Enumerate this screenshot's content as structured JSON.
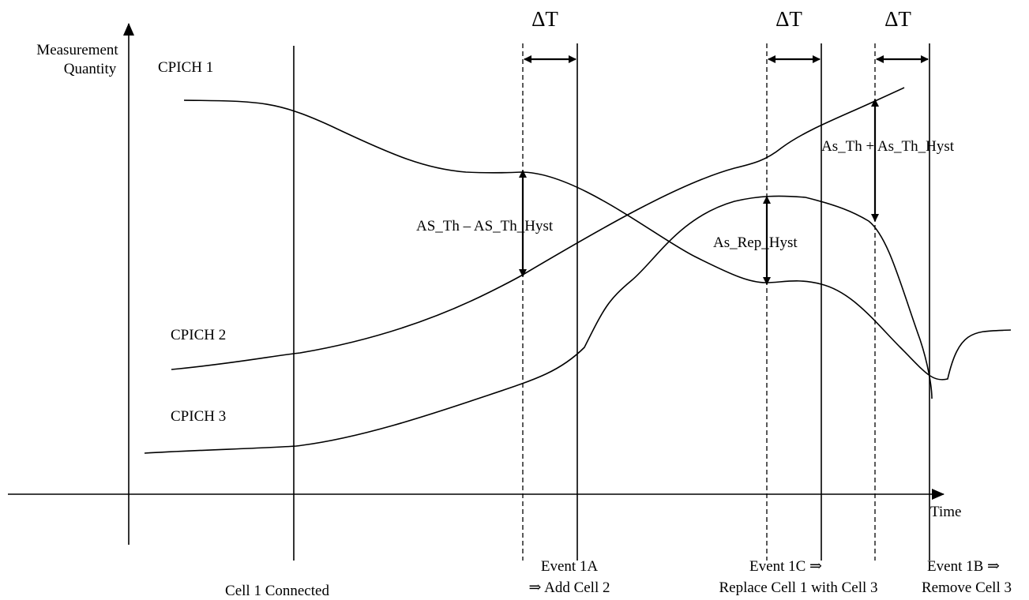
{
  "axes": {
    "y_label_line1": "Measurement",
    "y_label_line2": "Quantity",
    "x_label": "Time"
  },
  "curves": {
    "cpich1": "CPICH 1",
    "cpich2": "CPICH 2",
    "cpich3": "CPICH 3"
  },
  "delta_t": [
    "ΔT",
    "ΔT",
    "ΔT"
  ],
  "hysteresis": {
    "event_1a": "AS_Th – AS_Th_Hyst",
    "event_1c": "As_Rep_Hyst",
    "event_1b": "As_Th + As_Th_Hyst"
  },
  "events": {
    "cell1": "Cell 1 Connected",
    "event_1a_line1": "Event 1A",
    "event_1a_line2": "⇒ Add Cell 2",
    "event_1c_line1": "Event 1C ⇒",
    "event_1c_line2": "Replace Cell 1 with Cell 3",
    "event_1b_line1": "Event 1B ⇒",
    "event_1b_line2": "Remove Cell 3"
  }
}
